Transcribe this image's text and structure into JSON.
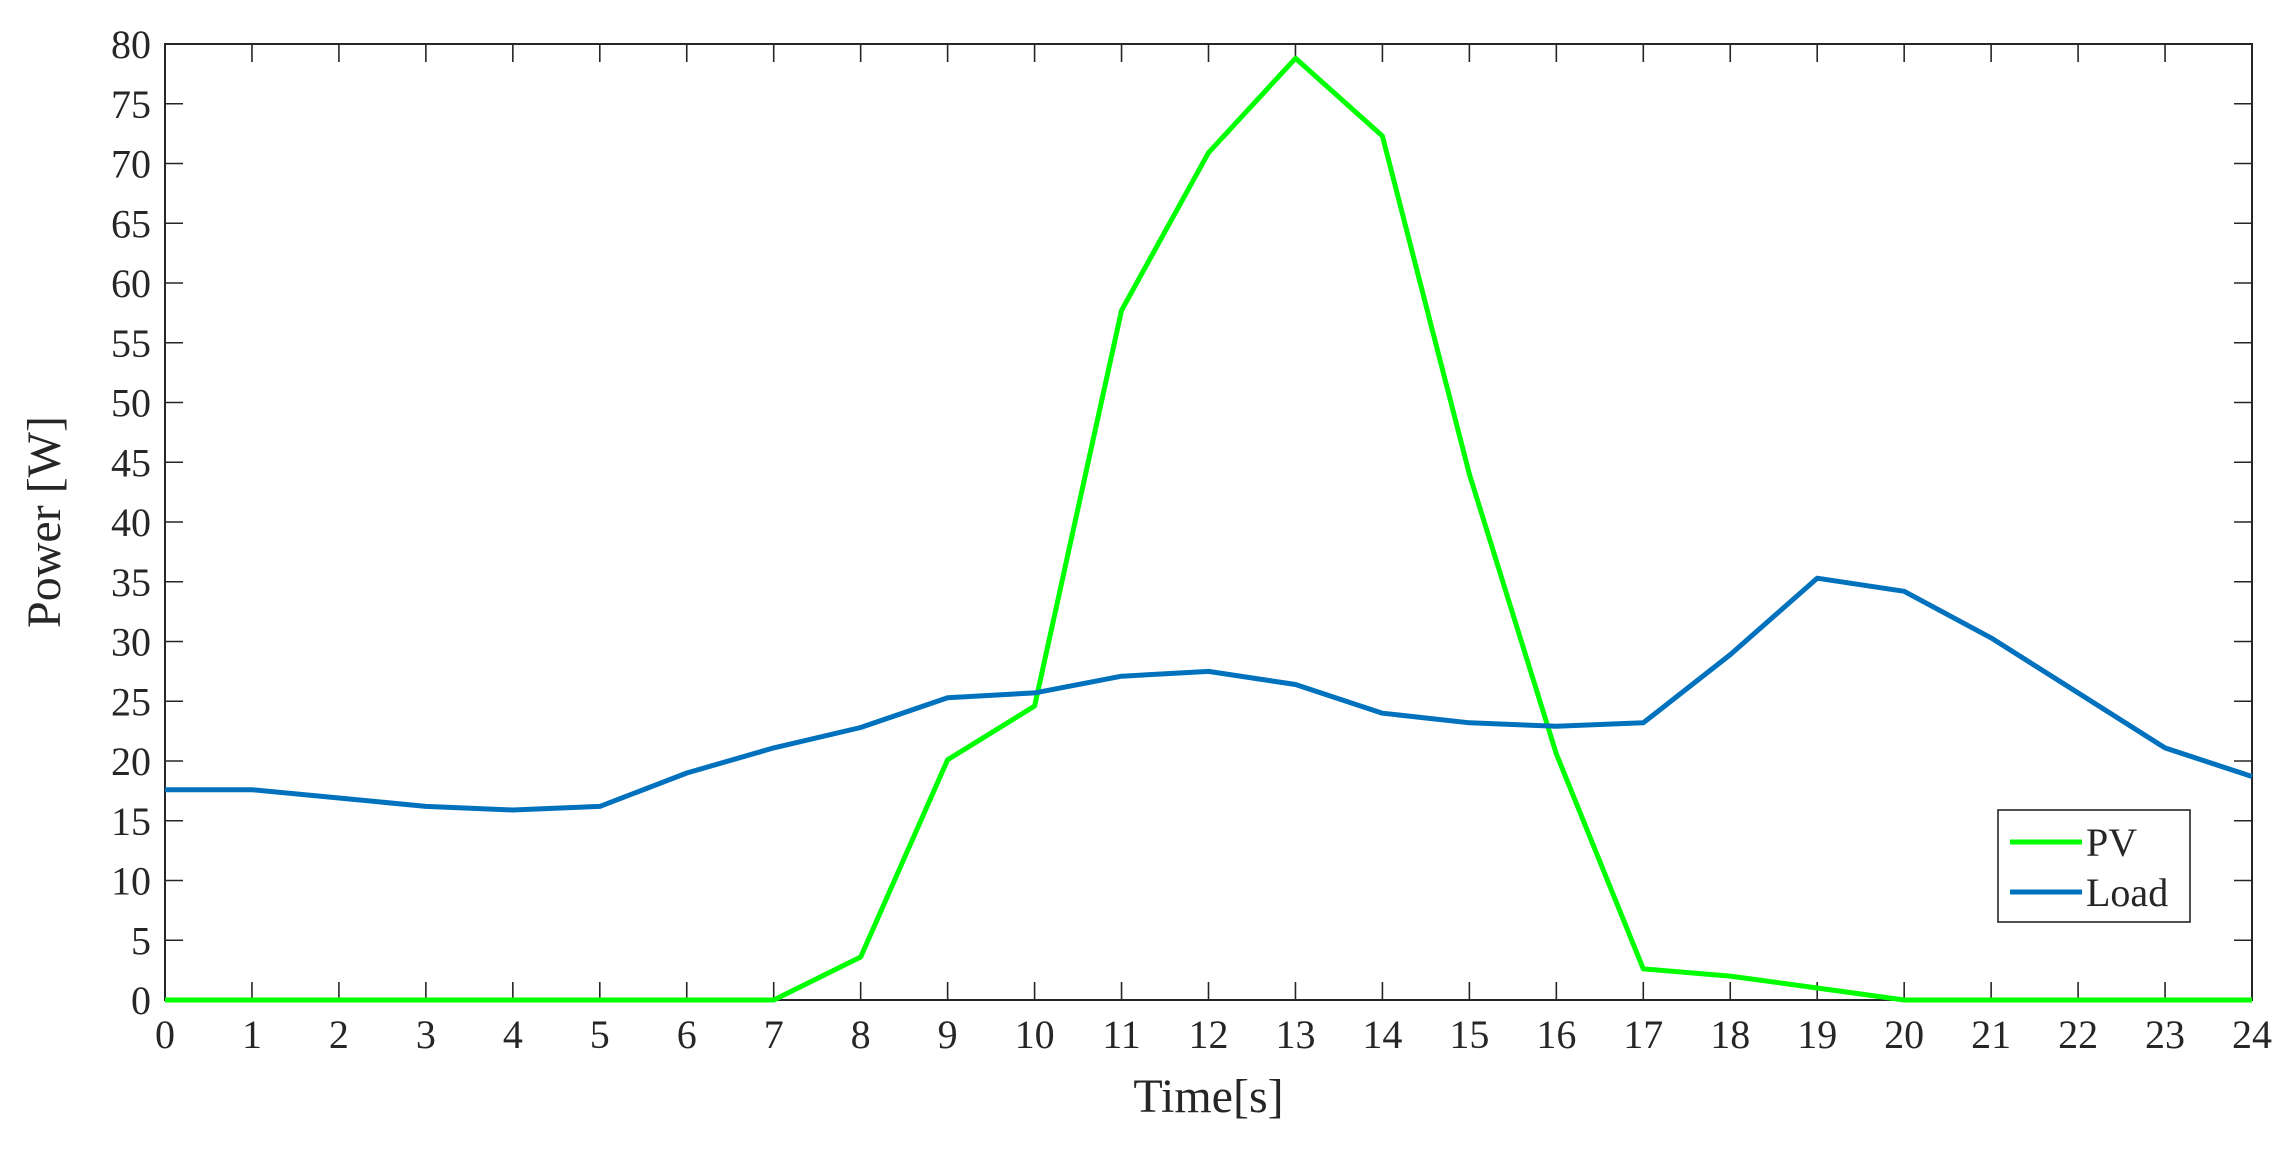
{
  "chart_data": {
    "type": "line",
    "title": "",
    "xlabel": "Time[s]",
    "ylabel": "Power [W]",
    "xlim": [
      0,
      24
    ],
    "ylim": [
      0,
      80
    ],
    "xticks": [
      0,
      1,
      2,
      3,
      4,
      5,
      6,
      7,
      8,
      9,
      10,
      11,
      12,
      13,
      14,
      15,
      16,
      17,
      18,
      19,
      20,
      21,
      22,
      23,
      24
    ],
    "yticks": [
      0,
      5,
      10,
      15,
      20,
      25,
      30,
      35,
      40,
      45,
      50,
      55,
      60,
      65,
      70,
      75,
      80
    ],
    "grid": false,
    "box": true,
    "legend_position": "bottom-right",
    "series": [
      {
        "name": "PV",
        "color": "#00ff00",
        "x": [
          0,
          1,
          2,
          3,
          4,
          5,
          6,
          7,
          8,
          9,
          10,
          11,
          12,
          13,
          14,
          15,
          16,
          17,
          18,
          19,
          20,
          21,
          22,
          23,
          24
        ],
        "y": [
          0,
          0,
          0,
          0,
          0,
          0,
          0,
          0,
          3.6,
          20.1,
          24.6,
          57.7,
          70.9,
          78.8,
          72.3,
          44.0,
          20.6,
          2.6,
          2.0,
          1.0,
          0,
          0,
          0,
          0,
          0
        ]
      },
      {
        "name": "Load",
        "color": "#0072bd",
        "x": [
          0,
          1,
          2,
          3,
          4,
          5,
          6,
          7,
          8,
          9,
          10,
          11,
          12,
          13,
          14,
          15,
          16,
          17,
          18,
          19,
          20,
          21,
          22,
          23,
          24
        ],
        "y": [
          17.6,
          17.6,
          16.9,
          16.2,
          15.9,
          16.2,
          19.0,
          21.1,
          22.8,
          25.3,
          25.7,
          27.1,
          27.5,
          26.4,
          24.0,
          23.2,
          22.9,
          23.2,
          28.9,
          35.3,
          34.2,
          30.3,
          25.7,
          21.1,
          18.7
        ]
      }
    ]
  }
}
